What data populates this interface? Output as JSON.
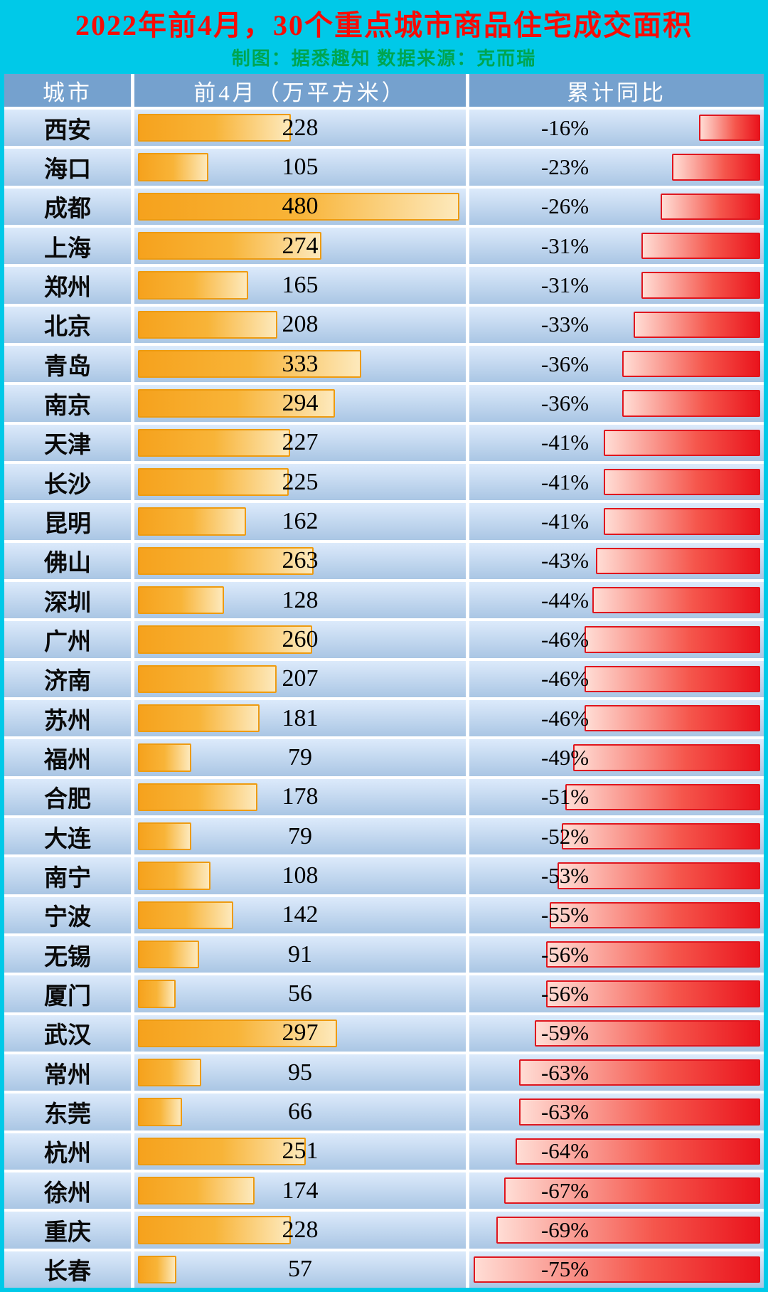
{
  "header": {
    "title": "2022年前4月，30个重点城市商品住宅成交面积",
    "subtitle": "制图：据悉趣知  数据来源：克而瑞"
  },
  "columns": {
    "city": "城市",
    "area": "前4月（万平方米）",
    "yoy": "累计同比"
  },
  "colors": {
    "frame_cyan": "#00c9e8",
    "title_red": "#f80c05",
    "subtitle_green": "#00a551",
    "header_blue": "#75a1ce",
    "row_bg_top": "#dceafb",
    "row_bg_bottom": "#aac6e4",
    "bar_orange": "#f6a21d",
    "bar_orange_light": "#fde9bc",
    "bar_red": "#ea141d",
    "bar_red_light": "#ffddd5"
  },
  "chart_data": {
    "type": "bar",
    "title": "2022年前4月，30个重点城市商品住宅成交面积",
    "subtitle": "制图：据悉趣知  数据来源：克而瑞",
    "orientation": "horizontal",
    "categories": [
      "西安",
      "海口",
      "成都",
      "上海",
      "郑州",
      "北京",
      "青岛",
      "南京",
      "天津",
      "长沙",
      "昆明",
      "佛山",
      "深圳",
      "广州",
      "济南",
      "苏州",
      "福州",
      "合肥",
      "大连",
      "南宁",
      "宁波",
      "无锡",
      "厦门",
      "武汉",
      "常州",
      "东莞",
      "杭州",
      "徐州",
      "重庆",
      "长春"
    ],
    "series": [
      {
        "name": "前4月（万平方米）",
        "values": [
          228,
          105,
          480,
          274,
          165,
          208,
          333,
          294,
          227,
          225,
          162,
          263,
          128,
          260,
          207,
          181,
          79,
          178,
          79,
          108,
          142,
          91,
          56,
          297,
          95,
          66,
          251,
          174,
          228,
          57
        ]
      },
      {
        "name": "累计同比(%)",
        "values": [
          -16,
          -23,
          -26,
          -31,
          -31,
          -33,
          -36,
          -36,
          -41,
          -41,
          -41,
          -43,
          -44,
          -46,
          -46,
          -46,
          -49,
          -51,
          -52,
          -53,
          -55,
          -56,
          -56,
          -59,
          -63,
          -63,
          -64,
          -67,
          -69,
          -75
        ]
      }
    ],
    "area_axis_max": 495,
    "yoy_axis_abs_max": 77,
    "legend_position": "none",
    "grid": false
  }
}
